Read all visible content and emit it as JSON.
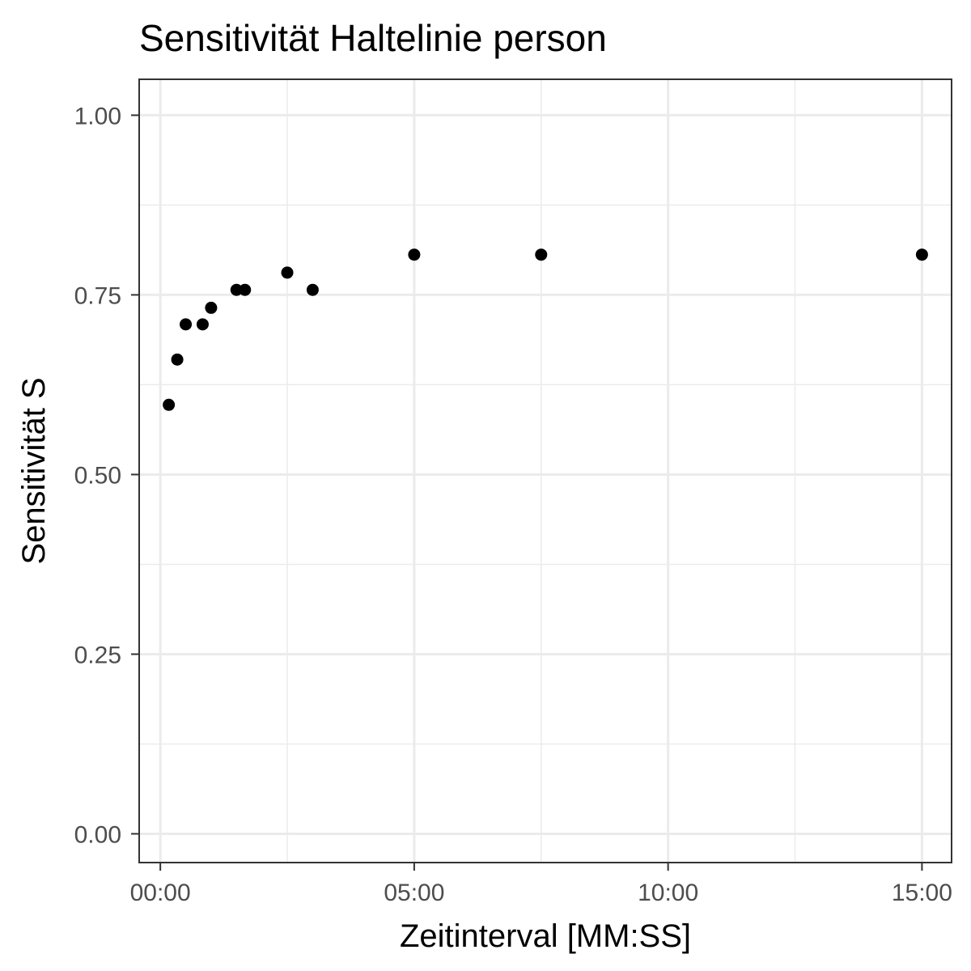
{
  "chart_data": {
    "type": "scatter",
    "title": "Sensitivität Haltelinie person",
    "xlabel": "Zeitinterval [MM:SS]",
    "ylabel": "Sensitivität S",
    "x_unit": "MM:SS",
    "xlim": [
      "-00:25",
      "15:35"
    ],
    "ylim": [
      -0.04,
      1.05
    ],
    "x_ticks": [
      "00:00",
      "05:00",
      "10:00",
      "15:00"
    ],
    "x_minor_ticks": [
      "02:30",
      "07:30",
      "12:30"
    ],
    "y_ticks": [
      "0.00",
      "0.25",
      "0.50",
      "0.75",
      "1.00"
    ],
    "y_minor_ticks": [
      0.125,
      0.375,
      0.625,
      0.875
    ],
    "grid": true,
    "legend": "none",
    "point_color": "#000000",
    "points": [
      {
        "x": "00:10",
        "y": 0.597
      },
      {
        "x": "00:20",
        "y": 0.66
      },
      {
        "x": "00:30",
        "y": 0.709
      },
      {
        "x": "00:50",
        "y": 0.709
      },
      {
        "x": "01:00",
        "y": 0.732
      },
      {
        "x": "01:30",
        "y": 0.757
      },
      {
        "x": "01:40",
        "y": 0.757
      },
      {
        "x": "02:30",
        "y": 0.781
      },
      {
        "x": "03:00",
        "y": 0.757
      },
      {
        "x": "05:00",
        "y": 0.806
      },
      {
        "x": "07:30",
        "y": 0.806
      },
      {
        "x": "15:00",
        "y": 0.806
      }
    ]
  }
}
